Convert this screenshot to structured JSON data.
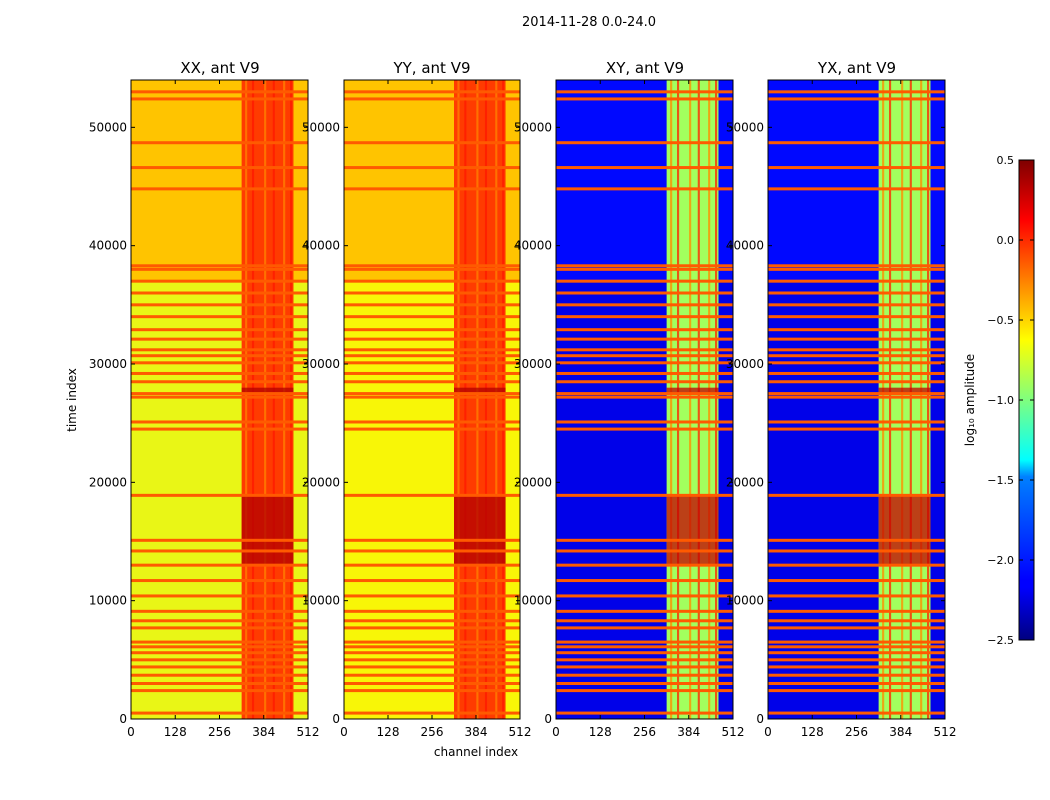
{
  "chart_data": {
    "type": "heatmap",
    "suptitle": "2014-11-28 0.0-24.0",
    "xlabel": "channel index",
    "ylabel": "time index",
    "xlim": [
      0,
      512
    ],
    "ylim": [
      0,
      54000
    ],
    "x_ticks": [
      0,
      128,
      256,
      384,
      512
    ],
    "y_ticks": [
      0,
      10000,
      20000,
      30000,
      40000,
      50000
    ],
    "colorbar": {
      "label": "log₁₀ amplitude",
      "range": [
        -2.5,
        0.5
      ],
      "ticks": [
        "0.5",
        "0.0",
        "−0.5",
        "−1.0",
        "−1.5",
        "−2.0",
        "−2.5"
      ],
      "colormap": "jet"
    },
    "panels": [
      {
        "title": "XX, ant V9",
        "base_level": -0.45,
        "low_level": -0.7,
        "bright_band_level": -0.05,
        "burst_level": 0.35
      },
      {
        "title": "YY, ant V9",
        "base_level": -0.45,
        "low_level": -0.65,
        "bright_band_level": -0.05,
        "burst_level": 0.35
      },
      {
        "title": "XY, ant V9",
        "base_level": -2.1,
        "low_level": -2.2,
        "bright_band_level": -0.9,
        "burst_level": 0.3
      },
      {
        "title": "YX, ant V9",
        "base_level": -2.1,
        "low_level": -2.2,
        "bright_band_level": -0.9,
        "burst_level": 0.3
      }
    ],
    "flagged_rows": [
      500,
      2400,
      3000,
      3700,
      4400,
      5000,
      5600,
      6100,
      6500,
      7700,
      8300,
      9100,
      10400,
      11700,
      13000,
      14200,
      15100,
      18900,
      24500,
      25100,
      27200,
      27500,
      28500,
      29200,
      30100,
      30700,
      31200,
      32100,
      32900,
      34000,
      35000,
      36000,
      37000,
      38000,
      38300,
      44800,
      46600,
      48700,
      52400,
      53000
    ],
    "bright_channel_band": [
      320,
      470
    ],
    "burst_time_ranges": [
      [
        13000,
        19000
      ],
      [
        27400,
        28000
      ]
    ]
  }
}
